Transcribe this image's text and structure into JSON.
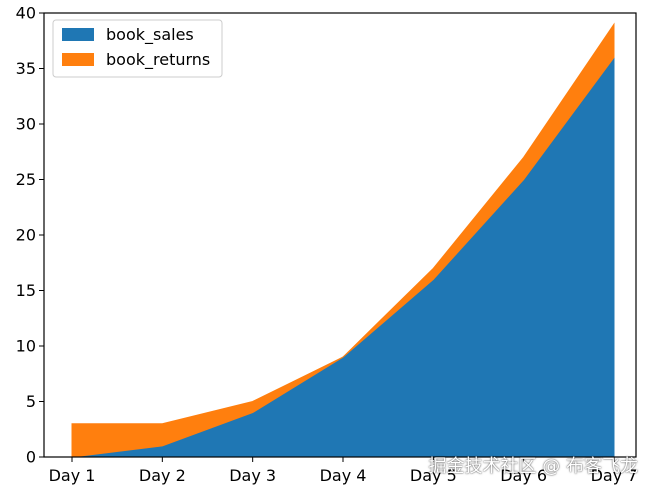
{
  "chart_data": {
    "type": "area",
    "stacked": true,
    "categories": [
      "Day 1",
      "Day 2",
      "Day 3",
      "Day 4",
      "Day 5",
      "Day 6",
      "Day 7"
    ],
    "series": [
      {
        "name": "book_sales",
        "values": [
          0,
          1,
          4,
          9,
          16,
          25,
          36
        ],
        "color": "#1f77b4"
      },
      {
        "name": "book_returns",
        "values": [
          3,
          2,
          1,
          0,
          1,
          2,
          3
        ],
        "color": "#ff7f0e"
      }
    ],
    "ylim": [
      0,
      40
    ],
    "yticks": [
      0,
      5,
      10,
      15,
      20,
      25,
      30,
      35,
      40
    ],
    "grid": false,
    "legend_position": "top-left"
  },
  "watermark": "掘金技术社区 @ 布客飞龙"
}
